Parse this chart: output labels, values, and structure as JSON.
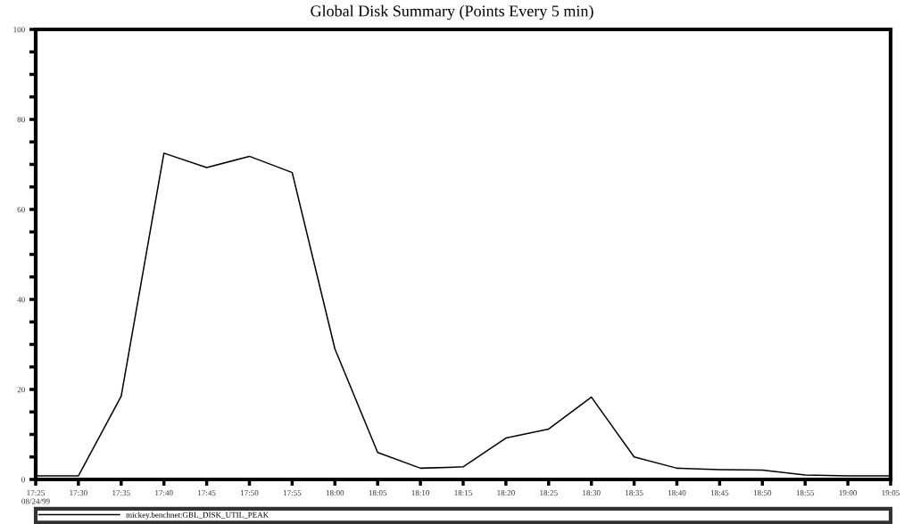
{
  "chart_data": {
    "type": "line",
    "title": "Global Disk Summary (Points Every 5 min)",
    "x": [
      17.41667,
      17.5,
      17.58333,
      17.66667,
      17.75,
      17.83333,
      17.91667,
      18.0,
      18.08333,
      18.16667,
      18.25,
      18.33333,
      18.41667,
      18.5,
      18.58333,
      18.66667,
      18.75,
      18.83333,
      18.91667,
      19.0,
      19.08333
    ],
    "series": [
      {
        "name": "mickey.benchnet:GBL_DISK_UTIL_PEAK",
        "color": "#000000",
        "values": [
          0.8,
          0.8,
          18.5,
          72.5,
          69.3,
          71.8,
          68.2,
          29,
          6,
          2.5,
          2.8,
          9.2,
          11.2,
          18.3,
          5,
          2.5,
          2.2,
          2.1,
          1,
          0.8,
          0.8
        ]
      }
    ],
    "xlim": [
      17.41667,
      19.08333
    ],
    "xticks": [
      {
        "value": 17.41667,
        "label": "17:25\n08/24/99"
      },
      {
        "value": 17.5,
        "label": "17:30"
      },
      {
        "value": 17.58333,
        "label": "17:35"
      },
      {
        "value": 17.66667,
        "label": "17:40"
      },
      {
        "value": 17.75,
        "label": "17:45"
      },
      {
        "value": 17.83333,
        "label": "17:50"
      },
      {
        "value": 17.91667,
        "label": "17:55"
      },
      {
        "value": 18.0,
        "label": "18:00"
      },
      {
        "value": 18.08333,
        "label": "18:05"
      },
      {
        "value": 18.16667,
        "label": "18:10"
      },
      {
        "value": 18.25,
        "label": "18:15"
      },
      {
        "value": 18.33333,
        "label": "18:20"
      },
      {
        "value": 18.41667,
        "label": "18:25"
      },
      {
        "value": 18.5,
        "label": "18:30"
      },
      {
        "value": 18.58333,
        "label": "18:35"
      },
      {
        "value": 18.66667,
        "label": "18:40"
      },
      {
        "value": 18.75,
        "label": "18:45"
      },
      {
        "value": 18.83333,
        "label": "18:50"
      },
      {
        "value": 18.91667,
        "label": "18:55"
      },
      {
        "value": 19.0,
        "label": "19:00"
      },
      {
        "value": 19.08333,
        "label": "19:05"
      }
    ],
    "ylim": [
      0,
      100
    ],
    "yticks": [
      0,
      {
        "value": 5,
        "label": null
      },
      {
        "value": 10,
        "label": null
      },
      {
        "value": 15,
        "label": null
      },
      20,
      {
        "value": 25,
        "label": null
      },
      {
        "value": 30,
        "label": null
      },
      {
        "value": 35,
        "label": null
      },
      40,
      {
        "value": 45,
        "label": null
      },
      {
        "value": 50,
        "label": null
      },
      {
        "value": 55,
        "label": null
      },
      60,
      {
        "value": 65,
        "label": null
      },
      {
        "value": 70,
        "label": null
      },
      {
        "value": 75,
        "label": null
      },
      80,
      {
        "value": 85,
        "label": null
      },
      {
        "value": 90,
        "label": null
      },
      {
        "value": 95,
        "label": null
      },
      100
    ],
    "grid": false,
    "legend": "bottom",
    "marker": "none",
    "line_style": "solid"
  }
}
